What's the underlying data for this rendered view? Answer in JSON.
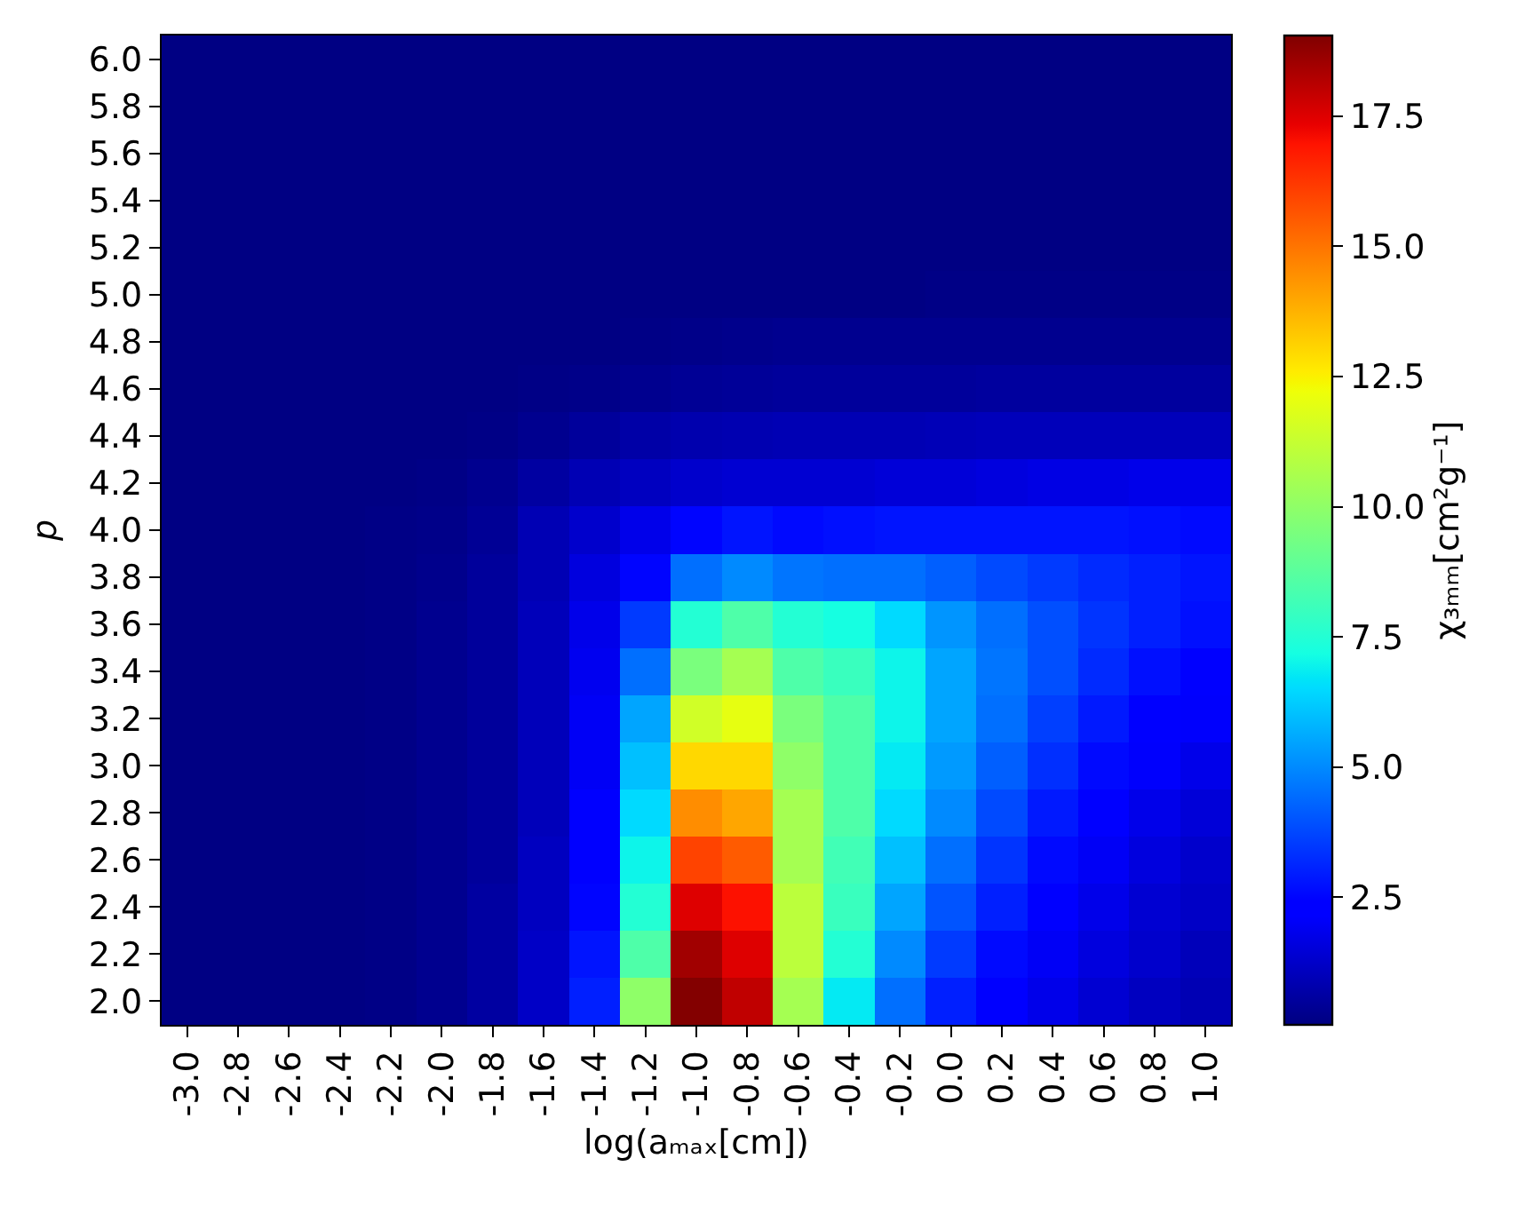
{
  "chart_data": {
    "type": "heatmap",
    "xlabel": "log(aₘₐₓ[cm])",
    "ylabel": "p",
    "clabel": "χ₃ₘₘ[cm²g⁻¹]",
    "categories": [
      "-3.0",
      "-2.8",
      "-2.6",
      "-2.4",
      "-2.2",
      "-2.0",
      "-1.8",
      "-1.6",
      "-1.4",
      "-1.2",
      "-1.0",
      "-0.8",
      "-0.6",
      "-0.4",
      "-0.2",
      "0.0",
      "0.2",
      "0.4",
      "0.6",
      "0.8",
      "1.0"
    ],
    "y_categories": [
      "6.0",
      "5.8",
      "5.6",
      "5.4",
      "5.2",
      "5.0",
      "4.8",
      "4.6",
      "4.4",
      "4.2",
      "4.0",
      "3.8",
      "3.6",
      "3.4",
      "3.2",
      "3.0",
      "2.8",
      "2.6",
      "2.4",
      "2.2",
      "2.0"
    ],
    "cells": [
      [
        0.1,
        0.1,
        0.1,
        0.1,
        0.1,
        0.1,
        0.1,
        0.1,
        0.1,
        0.1,
        0.1,
        0.1,
        0.1,
        0.1,
        0.1,
        0.1,
        0.1,
        0.1,
        0.1,
        0.1,
        0.1
      ],
      [
        0.1,
        0.1,
        0.1,
        0.1,
        0.1,
        0.1,
        0.1,
        0.1,
        0.1,
        0.1,
        0.1,
        0.1,
        0.1,
        0.1,
        0.1,
        0.1,
        0.1,
        0.1,
        0.1,
        0.1,
        0.1
      ],
      [
        0.1,
        0.1,
        0.1,
        0.1,
        0.1,
        0.1,
        0.1,
        0.1,
        0.1,
        0.1,
        0.1,
        0.1,
        0.1,
        0.1,
        0.1,
        0.1,
        0.1,
        0.1,
        0.1,
        0.1,
        0.1
      ],
      [
        0.1,
        0.1,
        0.1,
        0.1,
        0.1,
        0.1,
        0.1,
        0.1,
        0.1,
        0.1,
        0.1,
        0.1,
        0.1,
        0.1,
        0.1,
        0.1,
        0.1,
        0.1,
        0.1,
        0.1,
        0.1
      ],
      [
        0.1,
        0.1,
        0.1,
        0.1,
        0.1,
        0.1,
        0.1,
        0.1,
        0.1,
        0.1,
        0.1,
        0.1,
        0.1,
        0.1,
        0.1,
        0.1,
        0.1,
        0.1,
        0.1,
        0.1,
        0.1
      ],
      [
        0.1,
        0.1,
        0.1,
        0.1,
        0.1,
        0.1,
        0.1,
        0.1,
        0.1,
        0.1,
        0.1,
        0.1,
        0.1,
        0.1,
        0.1,
        0.15,
        0.15,
        0.15,
        0.15,
        0.15,
        0.15
      ],
      [
        0.1,
        0.1,
        0.1,
        0.1,
        0.1,
        0.1,
        0.1,
        0.1,
        0.1,
        0.15,
        0.2,
        0.25,
        0.3,
        0.3,
        0.3,
        0.3,
        0.3,
        0.3,
        0.3,
        0.3,
        0.3
      ],
      [
        0.1,
        0.1,
        0.1,
        0.1,
        0.1,
        0.1,
        0.1,
        0.15,
        0.2,
        0.3,
        0.4,
        0.45,
        0.5,
        0.5,
        0.5,
        0.5,
        0.55,
        0.55,
        0.55,
        0.55,
        0.55
      ],
      [
        0.1,
        0.1,
        0.1,
        0.1,
        0.1,
        0.1,
        0.15,
        0.3,
        0.5,
        0.7,
        0.8,
        0.85,
        0.9,
        0.9,
        0.9,
        0.95,
        1.0,
        1.0,
        1.0,
        1.0,
        1.0
      ],
      [
        0.1,
        0.1,
        0.1,
        0.1,
        0.1,
        0.15,
        0.3,
        0.6,
        0.9,
        1.1,
        1.3,
        1.4,
        1.4,
        1.4,
        1.5,
        1.5,
        1.6,
        1.7,
        1.7,
        1.8,
        1.8
      ],
      [
        0.1,
        0.1,
        0.1,
        0.1,
        0.15,
        0.2,
        0.4,
        0.9,
        1.3,
        1.8,
        2.5,
        2.8,
        2.6,
        2.7,
        2.8,
        2.8,
        2.8,
        2.8,
        2.8,
        2.7,
        2.6
      ],
      [
        0.1,
        0.1,
        0.1,
        0.1,
        0.15,
        0.25,
        0.5,
        0.9,
        1.6,
        2.5,
        4.5,
        5.0,
        4.6,
        4.5,
        4.5,
        4.2,
        3.8,
        3.5,
        3.2,
        3.0,
        2.8
      ],
      [
        0.1,
        0.1,
        0.1,
        0.1,
        0.15,
        0.3,
        0.5,
        1.0,
        1.8,
        3.5,
        7.5,
        8.5,
        7.5,
        7.2,
        6.5,
        5.2,
        4.5,
        3.9,
        3.4,
        3.0,
        2.7
      ],
      [
        0.1,
        0.1,
        0.1,
        0.1,
        0.15,
        0.3,
        0.5,
        1.0,
        1.9,
        4.5,
        9.5,
        10.5,
        8.5,
        8.0,
        7.0,
        5.5,
        4.6,
        3.9,
        3.2,
        2.7,
        2.4
      ],
      [
        0.1,
        0.1,
        0.1,
        0.1,
        0.15,
        0.3,
        0.5,
        1.0,
        2.0,
        5.5,
        11.5,
        12.0,
        9.5,
        8.5,
        7.0,
        5.5,
        4.5,
        3.6,
        2.9,
        2.4,
        2.1
      ],
      [
        0.1,
        0.1,
        0.1,
        0.1,
        0.15,
        0.3,
        0.5,
        1.0,
        2.0,
        6.0,
        13.0,
        13.0,
        10.0,
        8.5,
        6.8,
        5.3,
        4.2,
        3.3,
        2.6,
        2.1,
        1.8
      ],
      [
        0.1,
        0.1,
        0.1,
        0.1,
        0.15,
        0.3,
        0.5,
        1.0,
        2.2,
        6.5,
        14.5,
        14.0,
        10.5,
        8.5,
        6.5,
        5.0,
        3.8,
        2.9,
        2.3,
        1.8,
        1.5
      ],
      [
        0.1,
        0.1,
        0.1,
        0.1,
        0.15,
        0.3,
        0.5,
        1.1,
        2.3,
        7.0,
        16.0,
        15.5,
        10.5,
        8.2,
        6.0,
        4.5,
        3.4,
        2.6,
        2.0,
        1.6,
        1.3
      ],
      [
        0.1,
        0.1,
        0.1,
        0.1,
        0.15,
        0.3,
        0.6,
        1.1,
        2.5,
        7.5,
        17.5,
        17.0,
        11.0,
        8.0,
        5.5,
        4.0,
        3.0,
        2.3,
        1.8,
        1.4,
        1.2
      ],
      [
        0.1,
        0.1,
        0.1,
        0.1,
        0.15,
        0.3,
        0.6,
        1.2,
        2.8,
        8.5,
        18.5,
        17.5,
        11.0,
        7.5,
        5.0,
        3.5,
        2.6,
        2.0,
        1.6,
        1.3,
        1.0
      ],
      [
        0.1,
        0.1,
        0.1,
        0.1,
        0.15,
        0.3,
        0.6,
        1.2,
        3.0,
        10.0,
        19.0,
        18.0,
        10.5,
        6.8,
        4.5,
        3.0,
        2.3,
        1.8,
        1.4,
        1.1,
        0.9
      ]
    ],
    "clim": [
      0.05,
      19.05
    ],
    "cticks": [
      2.5,
      {
        "value": 5,
        "label": "5.0"
      },
      7.5,
      {
        "value": 10,
        "label": "10.0"
      },
      12.5,
      {
        "value": 15,
        "label": "15.0"
      },
      17.5
    ]
  }
}
